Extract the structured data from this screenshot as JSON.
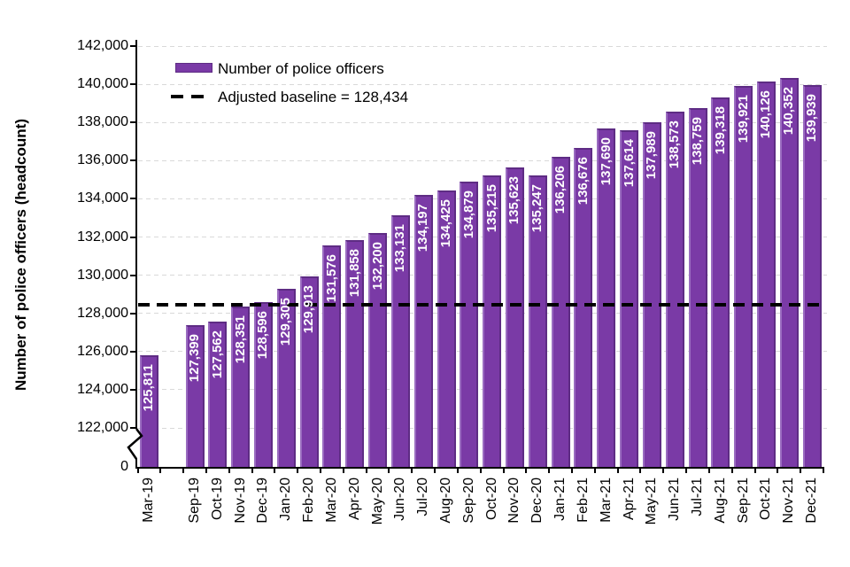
{
  "chart_data": {
    "type": "bar",
    "title": "",
    "ylabel": "Number of police officers (headcount)",
    "xlabel": "",
    "legend_position": "top-left-inside",
    "grid": true,
    "legend": [
      {
        "label": "Number of police officers",
        "marker": "bar-swatch"
      },
      {
        "label": "Adjusted baseline = 128,434",
        "marker": "dashed-line"
      }
    ],
    "baseline": {
      "value": 128434,
      "style": "dashed",
      "color": "#000000"
    },
    "categories": [
      "Mar-19",
      "Sep-19",
      "Oct-19",
      "Nov-19",
      "Dec-19",
      "Jan-20",
      "Feb-20",
      "Mar-20",
      "Apr-20",
      "May-20",
      "Jun-20",
      "Jul-20",
      "Aug-20",
      "Sep-20",
      "Oct-20",
      "Nov-20",
      "Dec-20",
      "Jan-21",
      "Feb-21",
      "Mar-21",
      "Apr-21",
      "May-21",
      "Jun-21",
      "Jul-21",
      "Aug-21",
      "Sep-21",
      "Oct-21",
      "Nov-21",
      "Dec-21"
    ],
    "values": [
      125811,
      127399,
      127562,
      128351,
      128596,
      129305,
      129913,
      131576,
      131858,
      132200,
      133131,
      134197,
      134425,
      134879,
      135215,
      135623,
      135247,
      136206,
      136676,
      137690,
      137614,
      137989,
      138573,
      138759,
      139318,
      139921,
      140126,
      140352,
      139939
    ],
    "bar_labels": [
      "125,811",
      "127,399",
      "127,562",
      "128,351",
      "128,596",
      "129,305",
      "129,913",
      "131,576",
      "131,858",
      "132,200",
      "133,131",
      "134,197",
      "134,425",
      "134,879",
      "135,215",
      "135,623",
      "135,247",
      "136,206",
      "136,676",
      "137,690",
      "137,614",
      "137,989",
      "138,573",
      "138,759",
      "139,318",
      "139,921",
      "140,126",
      "140,352",
      "139,939"
    ],
    "gap_after_index": 0,
    "y_axis": {
      "tick_values": [
        142000,
        140000,
        138000,
        136000,
        134000,
        132000,
        130000,
        128000,
        126000,
        124000,
        122000
      ],
      "tick_labels": [
        "142,000",
        "140,000",
        "138,000",
        "136,000",
        "134,000",
        "132,000",
        "130,000",
        "128,000",
        "126,000",
        "124,000",
        "122,000"
      ],
      "zero_label": "0",
      "axis_break": true,
      "range_shown": [
        122000,
        142000
      ]
    },
    "colors": {
      "bar_fill": "#7a3aa6",
      "bar_border": "#5e2c84",
      "bar_highlight": "#9a6cc0",
      "bar_label_text": "#ffffff",
      "gridline": "#d9d9d9",
      "axis": "#000000",
      "baseline": "#000000"
    }
  }
}
